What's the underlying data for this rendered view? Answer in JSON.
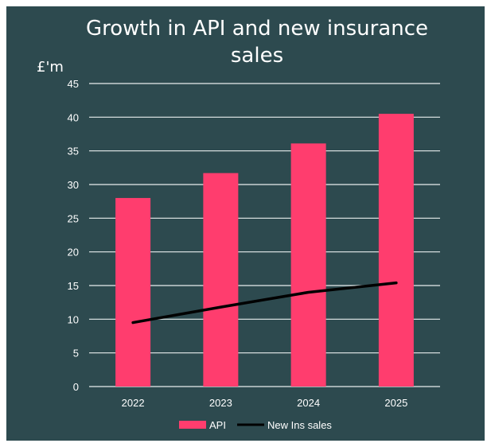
{
  "chart_data": {
    "type": "bar",
    "title_lines": [
      "Growth in API and new insurance",
      "sales"
    ],
    "title": "Growth in API and new insurance sales",
    "ylabel": "£'m",
    "xlabel": "",
    "categories": [
      "2022",
      "2023",
      "2024",
      "2025"
    ],
    "ylim": [
      0,
      45
    ],
    "yticks": [
      0,
      5,
      10,
      15,
      20,
      25,
      30,
      35,
      40,
      45
    ],
    "grid": true,
    "legend_position": "bottom",
    "series": [
      {
        "name": "API",
        "kind": "bar",
        "color": "#ff3d6e",
        "values": [
          28,
          31.7,
          36.1,
          40.5
        ]
      },
      {
        "name": "New Ins sales",
        "kind": "line",
        "color": "#000000",
        "values": [
          9.5,
          11.8,
          14.0,
          15.4
        ]
      }
    ]
  },
  "colors": {
    "background": "#2d4a4f",
    "text": "#ffffff",
    "grid": "#e8eeee"
  }
}
